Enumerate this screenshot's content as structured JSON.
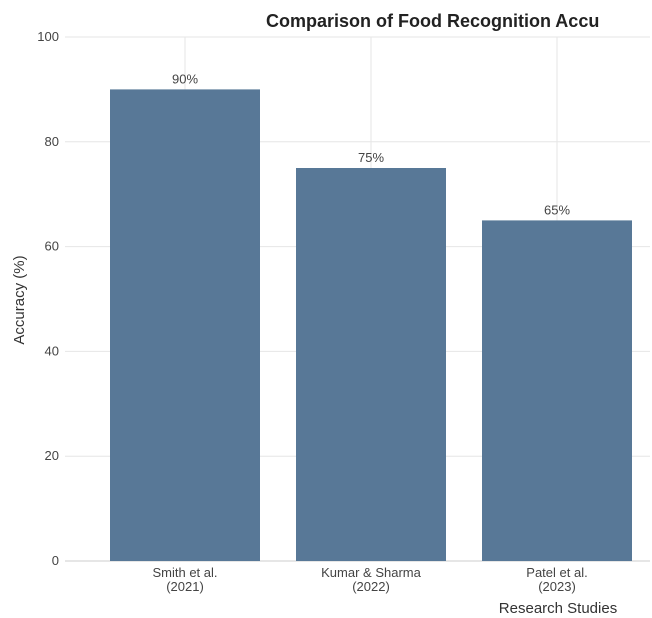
{
  "chart_data": {
    "type": "bar",
    "title": "Comparison of Food Recognition Accu",
    "xlabel": "Research Studies",
    "ylabel": "Accuracy (%)",
    "categories": [
      [
        "Smith et al.",
        "(2021)"
      ],
      [
        "Kumar & Sharma",
        "(2022)"
      ],
      [
        "Patel et al.",
        "(2023)"
      ]
    ],
    "values": [
      90,
      75,
      65
    ],
    "data_labels": [
      "90%",
      "75%",
      "65%"
    ],
    "ylim": [
      0,
      100
    ],
    "yticks": [
      0,
      20,
      40,
      60,
      80,
      100
    ],
    "grid": true,
    "legend": "none",
    "colors": {
      "bar": "#587897",
      "grid": "#e6e6e6",
      "axis": "#cccccc"
    }
  }
}
